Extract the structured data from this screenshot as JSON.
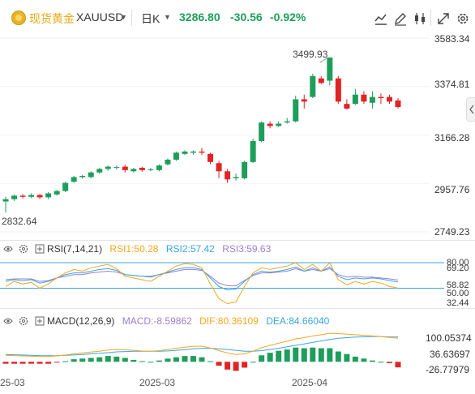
{
  "header": {
    "name": "现货黄金",
    "symbol": "XAUUSD",
    "period": "日K",
    "price": "3286.80",
    "change": "-30.56",
    "change_pct": "-0.92%",
    "tools": [
      "indicator-icon",
      "draw-icon",
      "candle-type-icon",
      "fullscreen-icon",
      "settings-icon"
    ]
  },
  "main_chart": {
    "high_marker": "3499.93",
    "low_marker": "2832.64",
    "y_ticks": [
      "3583.34",
      "3374.81",
      "3166.28",
      "2957.76",
      "2749.23"
    ],
    "colors": {
      "up": "#1e9e5a",
      "down": "#e02424"
    }
  },
  "rsi": {
    "title": "RSI(7,14,21)",
    "rsi1": "RSI1:50.28",
    "rsi2": "RSI2:57.42",
    "rsi3": "RSI3:59.63",
    "y_ticks": [
      "80.00",
      "69.20",
      "58.82",
      "50.00",
      "32.44"
    ],
    "colors": {
      "rsi1": "#f5a623",
      "rsi2": "#3aa6dd",
      "rsi3": "#9b7fd1"
    }
  },
  "macd": {
    "title": "MACD(12,26,9)",
    "macd": "MACD:-8.59862",
    "dif": "DIF:80.36109",
    "dea": "DEA:84.66040",
    "y_ticks": [
      "100.05374",
      "36.63697",
      "-26.77979"
    ],
    "colors": {
      "dif": "#f5a623",
      "dea": "#3aa6dd"
    }
  },
  "x_axis": [
    "25-03",
    "2025-03",
    "2025-04"
  ],
  "chart_data": {
    "type": "candlestick",
    "y_axis_ticks": [
      3583.34,
      3374.81,
      3166.28,
      2957.76,
      2749.23
    ],
    "high_marker": 3499.93,
    "low_marker": 2832.64,
    "candles": [
      [
        2880,
        2890,
        2832.64,
        2900
      ],
      [
        2890,
        2905,
        2882,
        2910
      ],
      [
        2905,
        2900,
        2893,
        2912
      ],
      [
        2900,
        2908,
        2894,
        2915
      ],
      [
        2908,
        2898,
        2890,
        2912
      ],
      [
        2898,
        2915,
        2890,
        2920
      ],
      [
        2910,
        2925,
        2905,
        2930
      ],
      [
        2925,
        2960,
        2920,
        2965
      ],
      [
        2965,
        2985,
        2960,
        2990
      ],
      [
        2985,
        2990,
        2978,
        2995
      ],
      [
        2985,
        3005,
        2980,
        3010
      ],
      [
        3005,
        3020,
        3000,
        3025
      ],
      [
        3020,
        3030,
        3012,
        3035
      ],
      [
        3025,
        3028,
        3018,
        3034
      ],
      [
        3030,
        3015,
        3005,
        3038
      ],
      [
        3010,
        3020,
        3005,
        3025
      ],
      [
        3025,
        3015,
        3008,
        3030
      ],
      [
        3015,
        3018,
        3010,
        3025
      ],
      [
        3015,
        3035,
        3010,
        3040
      ],
      [
        3040,
        3060,
        3035,
        3065
      ],
      [
        3060,
        3090,
        3055,
        3095
      ],
      [
        3085,
        3095,
        3080,
        3100
      ],
      [
        3090,
        3095,
        3082,
        3100
      ],
      [
        3095,
        3090,
        3080,
        3110
      ],
      [
        3085,
        3050,
        3040,
        3090
      ],
      [
        3045,
        3010,
        2980,
        3055
      ],
      [
        3010,
        2975,
        2960,
        3020
      ],
      [
        2980,
        2985,
        2970,
        3000
      ],
      [
        2980,
        3050,
        2975,
        3055
      ],
      [
        3050,
        3140,
        3045,
        3150
      ],
      [
        3140,
        3220,
        3135,
        3225
      ],
      [
        3215,
        3205,
        3195,
        3225
      ],
      [
        3205,
        3215,
        3200,
        3225
      ],
      [
        3220,
        3225,
        3215,
        3240
      ],
      [
        3225,
        3320,
        3220,
        3335
      ],
      [
        3320,
        3310,
        3280,
        3340
      ],
      [
        3330,
        3420,
        3325,
        3430
      ],
      [
        3410,
        3390,
        3385,
        3420
      ],
      [
        3400,
        3499.93,
        3380,
        3499.93
      ],
      [
        3410,
        3310,
        3300,
        3420
      ],
      [
        3300,
        3280,
        3275,
        3320
      ],
      [
        3300,
        3340,
        3295,
        3365
      ],
      [
        3340,
        3310,
        3300,
        3355
      ],
      [
        3305,
        3330,
        3280,
        3355
      ],
      [
        3330,
        3325,
        3300,
        3345
      ],
      [
        3330,
        3310,
        3300,
        3340
      ],
      [
        3315,
        3286.8,
        3280,
        3325
      ]
    ],
    "rsi_ticks": [
      80.0,
      69.2,
      58.82,
      50.0,
      32.44
    ],
    "rsi1": [
      52,
      58,
      55,
      57,
      50,
      55,
      62,
      68,
      72,
      70,
      74,
      76,
      78,
      73,
      64,
      62,
      60,
      58,
      64,
      70,
      76,
      79,
      78,
      74,
      55,
      38,
      32,
      34,
      52,
      68,
      74,
      72,
      74,
      76,
      80,
      72,
      78,
      70,
      80,
      60,
      54,
      58,
      55,
      58,
      56,
      52,
      50.28
    ],
    "rsi2": [
      58,
      60,
      59,
      60,
      56,
      58,
      62,
      66,
      68,
      68,
      70,
      72,
      73,
      71,
      66,
      65,
      64,
      63,
      66,
      69,
      72,
      74,
      74,
      72,
      62,
      52,
      48,
      49,
      58,
      66,
      70,
      69,
      70,
      72,
      75,
      70,
      74,
      70,
      75,
      64,
      60,
      62,
      61,
      62,
      61,
      59,
      57.42
    ],
    "rsi3": [
      60,
      61,
      61,
      61,
      58,
      59,
      62,
      64,
      66,
      66,
      68,
      69,
      70,
      69,
      66,
      65,
      64,
      64,
      66,
      68,
      70,
      72,
      72,
      71,
      64,
      56,
      53,
      53,
      59,
      65,
      68,
      68,
      69,
      70,
      73,
      70,
      72,
      70,
      73,
      66,
      63,
      64,
      63,
      63,
      62,
      61,
      59.63
    ],
    "macd_ticks": [
      100.05374,
      36.63697,
      -26.77979
    ],
    "dif": [
      22,
      21,
      20,
      19,
      18,
      18,
      20,
      23,
      27,
      30,
      33,
      36,
      40,
      42,
      41,
      39,
      37,
      36,
      38,
      42,
      46,
      50,
      53,
      53,
      47,
      38,
      30,
      25,
      27,
      36,
      48,
      56,
      63,
      70,
      78,
      82,
      88,
      92,
      97,
      96,
      94,
      92,
      90,
      88,
      86,
      83,
      80.36
    ],
    "dea": [
      25,
      24,
      23,
      22,
      21,
      21,
      21,
      22,
      23,
      25,
      27,
      29,
      31,
      34,
      35,
      36,
      36,
      36,
      36,
      37,
      39,
      41,
      44,
      46,
      46,
      44,
      42,
      39,
      36,
      36,
      38,
      42,
      46,
      51,
      56,
      61,
      66,
      71,
      76,
      80,
      82,
      84,
      85,
      86,
      86,
      85,
      84.66
    ],
    "macd_hist": [
      -3,
      -3,
      -3,
      -3,
      -3,
      -3,
      -1,
      1,
      4,
      5,
      6,
      7,
      9,
      8,
      6,
      3,
      1,
      0,
      2,
      5,
      7,
      9,
      9,
      7,
      1,
      -6,
      -12,
      -14,
      -9,
      0,
      10,
      14,
      17,
      19,
      22,
      21,
      22,
      21,
      21,
      16,
      12,
      8,
      5,
      2,
      0,
      -2,
      -8.6
    ]
  }
}
